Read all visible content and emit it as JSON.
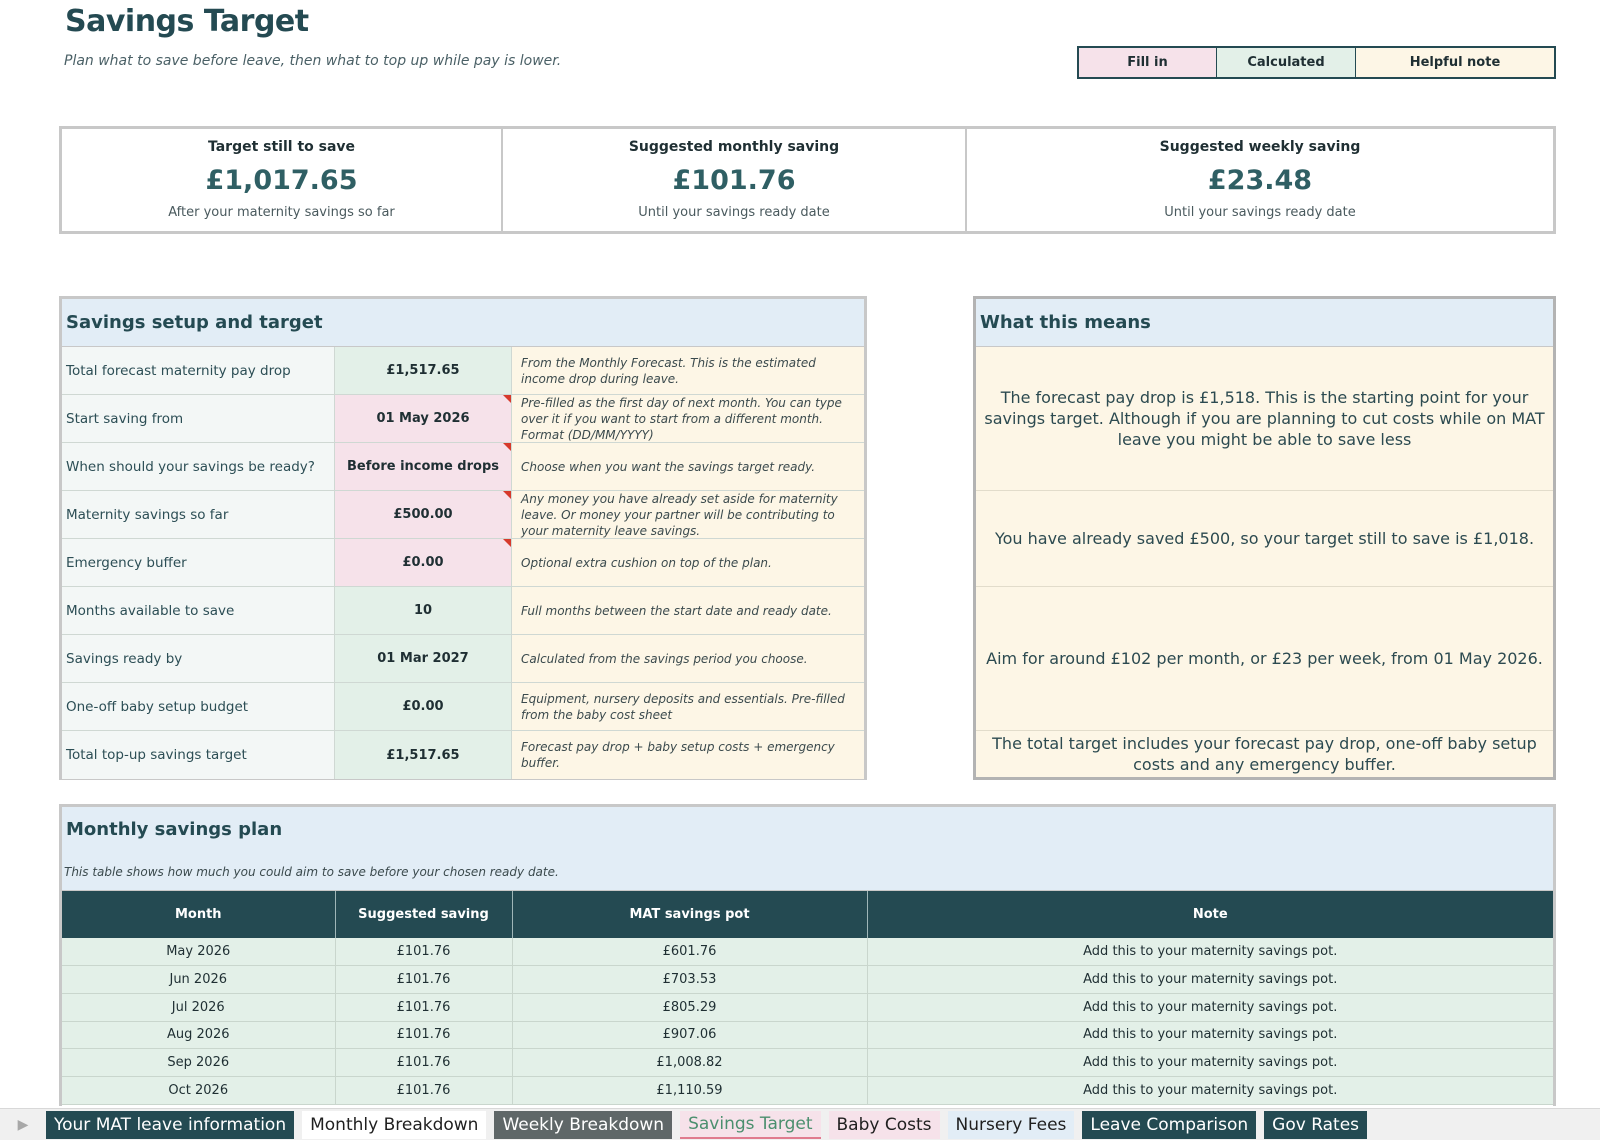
{
  "header": {
    "title": "Savings Target",
    "subtitle": "Plan what to save before leave, then what to top up while pay is lower."
  },
  "legend": {
    "fill": "Fill in",
    "calculated": "Calculated",
    "note": "Helpful note"
  },
  "kpis": [
    {
      "label": "Target still to save",
      "value": "£1,017.65",
      "sub": "After your maternity savings so far"
    },
    {
      "label": "Suggested monthly saving",
      "value": "£101.76",
      "sub": "Until your savings ready date"
    },
    {
      "label": "Suggested weekly saving",
      "value": "£23.48",
      "sub": "Until your savings ready date"
    }
  ],
  "setup": {
    "title": "Savings setup and target",
    "rows": [
      {
        "label": "Total forecast maternity pay drop",
        "value": "£1,517.65",
        "kind": "calc",
        "note": "From the Monthly Forecast. This is the estimated income drop during leave."
      },
      {
        "label": "Start saving from",
        "value": "01 May 2026",
        "kind": "fill",
        "note": "Pre-filled as the first day of next month. You can type over it if you want to start from a different month. Format (DD/MM/YYYY)"
      },
      {
        "label": "When should your savings be ready?",
        "value": "Before income drops",
        "kind": "fill",
        "note": "Choose when you want the savings target ready."
      },
      {
        "label": "Maternity savings so far",
        "value": "£500.00",
        "kind": "fill",
        "note": "Any money you have already set aside for maternity leave. Or money your partner will be contributing to your maternity leave savings."
      },
      {
        "label": "Emergency buffer",
        "value": "£0.00",
        "kind": "fill",
        "note": "Optional extra cushion on top of the plan."
      },
      {
        "label": "Months available to save",
        "value": "10",
        "kind": "calc",
        "note": "Full months between the start date and ready date."
      },
      {
        "label": "Savings ready by",
        "value": "01 Mar 2027",
        "kind": "calc",
        "note": "Calculated from the savings period you choose."
      },
      {
        "label": "One-off baby setup budget",
        "value": "£0.00",
        "kind": "calc",
        "note": "Equipment, nursery deposits and essentials. Pre-filled from the baby cost sheet"
      },
      {
        "label": "Total top-up savings target",
        "value": "£1,517.65",
        "kind": "calc",
        "note": "Forecast pay drop + baby setup costs + emergency buffer."
      }
    ]
  },
  "means": {
    "title": "What this means",
    "paragraphs": [
      "The forecast pay drop is £1,518. This is the starting point for your savings target. Although if you are planning to cut costs while on MAT leave you might be able to save less",
      "You have already saved £500, so your target still to save is £1,018.",
      "Aim for around £102 per month, or £23 per week, from 01 May 2026.",
      "The total target includes your forecast pay drop, one-off baby setup costs and any emergency buffer."
    ]
  },
  "monthly": {
    "title": "Monthly savings plan",
    "description": "This table shows how much you could aim to save before your chosen ready date.",
    "columns": [
      "Month",
      "Suggested saving",
      "MAT savings pot",
      "Note"
    ],
    "rows": [
      [
        "May 2026",
        "£101.76",
        "£601.76",
        "Add this to your maternity savings pot."
      ],
      [
        "Jun 2026",
        "£101.76",
        "£703.53",
        "Add this to your maternity savings pot."
      ],
      [
        "Jul 2026",
        "£101.76",
        "£805.29",
        "Add this to your maternity savings pot."
      ],
      [
        "Aug 2026",
        "£101.76",
        "£907.06",
        "Add this to your maternity savings pot."
      ],
      [
        "Sep 2026",
        "£101.76",
        "£1,008.82",
        "Add this to your maternity savings pot."
      ],
      [
        "Oct 2026",
        "£101.76",
        "£1,110.59",
        "Add this to your maternity savings pot."
      ]
    ]
  },
  "tabs": [
    {
      "label": "Your MAT leave information",
      "style": "dark"
    },
    {
      "label": "Monthly Breakdown",
      "style": "white"
    },
    {
      "label": "Weekly Breakdown",
      "style": "grey"
    },
    {
      "label": "Savings Target",
      "style": "active"
    },
    {
      "label": "Baby Costs",
      "style": "pink"
    },
    {
      "label": "Nursery Fees",
      "style": "blue"
    },
    {
      "label": "Leave Comparison",
      "style": "dark"
    },
    {
      "label": "Gov Rates",
      "style": "dark"
    }
  ],
  "colors": {
    "brand_dark": "#244a52",
    "fill_in": "#f6e2ea",
    "calculated": "#e3f0e8",
    "helpful_note": "#fdf6e6",
    "section_header": "#e2edf6"
  }
}
